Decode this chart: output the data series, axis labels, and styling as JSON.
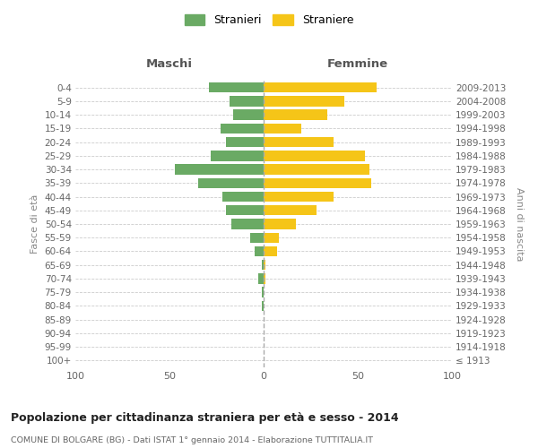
{
  "age_groups": [
    "100+",
    "95-99",
    "90-94",
    "85-89",
    "80-84",
    "75-79",
    "70-74",
    "65-69",
    "60-64",
    "55-59",
    "50-54",
    "45-49",
    "40-44",
    "35-39",
    "30-34",
    "25-29",
    "20-24",
    "15-19",
    "10-14",
    "5-9",
    "0-4"
  ],
  "birth_years": [
    "≤ 1913",
    "1914-1918",
    "1919-1923",
    "1924-1928",
    "1929-1933",
    "1934-1938",
    "1939-1943",
    "1944-1948",
    "1949-1953",
    "1954-1958",
    "1959-1963",
    "1964-1968",
    "1969-1973",
    "1974-1978",
    "1979-1983",
    "1984-1988",
    "1989-1993",
    "1994-1998",
    "1999-2003",
    "2004-2008",
    "2009-2013"
  ],
  "maschi": [
    0,
    0,
    0,
    0,
    1,
    1,
    3,
    1,
    5,
    7,
    17,
    20,
    22,
    35,
    47,
    28,
    20,
    23,
    16,
    18,
    29
  ],
  "femmine": [
    0,
    0,
    0,
    0,
    0,
    0,
    1,
    1,
    7,
    8,
    17,
    28,
    37,
    57,
    56,
    54,
    37,
    20,
    34,
    43,
    60
  ],
  "maschi_color": "#6aaa64",
  "femmine_color": "#f5c518",
  "background_color": "#ffffff",
  "grid_color": "#cccccc",
  "title": "Popolazione per cittadinanza straniera per età e sesso - 2014",
  "subtitle": "COMUNE DI BOLGARE (BG) - Dati ISTAT 1° gennaio 2014 - Elaborazione TUTTITALIA.IT",
  "label_maschi": "Maschi",
  "label_femmine": "Femmine",
  "ylabel_left": "Fasce di età",
  "ylabel_right": "Anni di nascita",
  "xlim": 100,
  "legend_stranieri": "Stranieri",
  "legend_straniere": "Straniere"
}
